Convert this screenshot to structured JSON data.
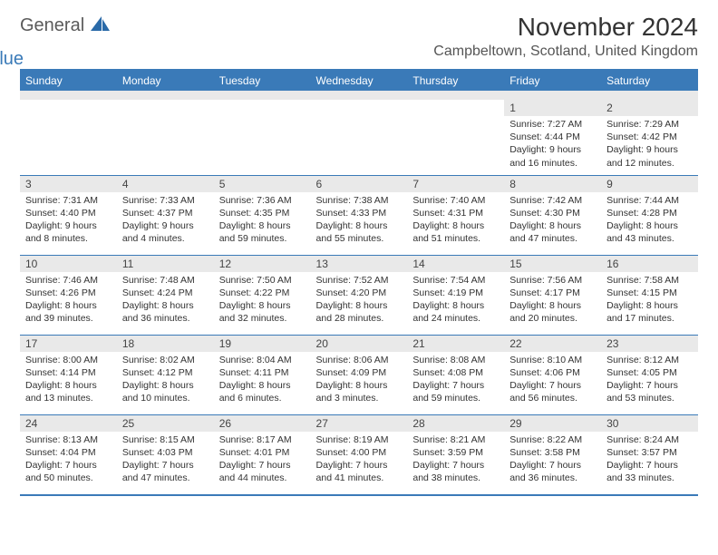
{
  "brand": {
    "text1": "General",
    "text2": "Blue",
    "icon_color": "#2a6aa8"
  },
  "header": {
    "month_title": "November 2024",
    "location": "Campbeltown, Scotland, United Kingdom"
  },
  "colors": {
    "header_bg": "#3a7ab8",
    "header_text": "#ffffff",
    "daynum_bg": "#e9e9e9",
    "rule": "#3a7ab8",
    "body_text": "#333333"
  },
  "weekdays": [
    "Sunday",
    "Monday",
    "Tuesday",
    "Wednesday",
    "Thursday",
    "Friday",
    "Saturday"
  ],
  "weeks": [
    [
      null,
      null,
      null,
      null,
      null,
      {
        "n": "1",
        "sunrise": "Sunrise: 7:27 AM",
        "sunset": "Sunset: 4:44 PM",
        "daylight": "Daylight: 9 hours and 16 minutes."
      },
      {
        "n": "2",
        "sunrise": "Sunrise: 7:29 AM",
        "sunset": "Sunset: 4:42 PM",
        "daylight": "Daylight: 9 hours and 12 minutes."
      }
    ],
    [
      {
        "n": "3",
        "sunrise": "Sunrise: 7:31 AM",
        "sunset": "Sunset: 4:40 PM",
        "daylight": "Daylight: 9 hours and 8 minutes."
      },
      {
        "n": "4",
        "sunrise": "Sunrise: 7:33 AM",
        "sunset": "Sunset: 4:37 PM",
        "daylight": "Daylight: 9 hours and 4 minutes."
      },
      {
        "n": "5",
        "sunrise": "Sunrise: 7:36 AM",
        "sunset": "Sunset: 4:35 PM",
        "daylight": "Daylight: 8 hours and 59 minutes."
      },
      {
        "n": "6",
        "sunrise": "Sunrise: 7:38 AM",
        "sunset": "Sunset: 4:33 PM",
        "daylight": "Daylight: 8 hours and 55 minutes."
      },
      {
        "n": "7",
        "sunrise": "Sunrise: 7:40 AM",
        "sunset": "Sunset: 4:31 PM",
        "daylight": "Daylight: 8 hours and 51 minutes."
      },
      {
        "n": "8",
        "sunrise": "Sunrise: 7:42 AM",
        "sunset": "Sunset: 4:30 PM",
        "daylight": "Daylight: 8 hours and 47 minutes."
      },
      {
        "n": "9",
        "sunrise": "Sunrise: 7:44 AM",
        "sunset": "Sunset: 4:28 PM",
        "daylight": "Daylight: 8 hours and 43 minutes."
      }
    ],
    [
      {
        "n": "10",
        "sunrise": "Sunrise: 7:46 AM",
        "sunset": "Sunset: 4:26 PM",
        "daylight": "Daylight: 8 hours and 39 minutes."
      },
      {
        "n": "11",
        "sunrise": "Sunrise: 7:48 AM",
        "sunset": "Sunset: 4:24 PM",
        "daylight": "Daylight: 8 hours and 36 minutes."
      },
      {
        "n": "12",
        "sunrise": "Sunrise: 7:50 AM",
        "sunset": "Sunset: 4:22 PM",
        "daylight": "Daylight: 8 hours and 32 minutes."
      },
      {
        "n": "13",
        "sunrise": "Sunrise: 7:52 AM",
        "sunset": "Sunset: 4:20 PM",
        "daylight": "Daylight: 8 hours and 28 minutes."
      },
      {
        "n": "14",
        "sunrise": "Sunrise: 7:54 AM",
        "sunset": "Sunset: 4:19 PM",
        "daylight": "Daylight: 8 hours and 24 minutes."
      },
      {
        "n": "15",
        "sunrise": "Sunrise: 7:56 AM",
        "sunset": "Sunset: 4:17 PM",
        "daylight": "Daylight: 8 hours and 20 minutes."
      },
      {
        "n": "16",
        "sunrise": "Sunrise: 7:58 AM",
        "sunset": "Sunset: 4:15 PM",
        "daylight": "Daylight: 8 hours and 17 minutes."
      }
    ],
    [
      {
        "n": "17",
        "sunrise": "Sunrise: 8:00 AM",
        "sunset": "Sunset: 4:14 PM",
        "daylight": "Daylight: 8 hours and 13 minutes."
      },
      {
        "n": "18",
        "sunrise": "Sunrise: 8:02 AM",
        "sunset": "Sunset: 4:12 PM",
        "daylight": "Daylight: 8 hours and 10 minutes."
      },
      {
        "n": "19",
        "sunrise": "Sunrise: 8:04 AM",
        "sunset": "Sunset: 4:11 PM",
        "daylight": "Daylight: 8 hours and 6 minutes."
      },
      {
        "n": "20",
        "sunrise": "Sunrise: 8:06 AM",
        "sunset": "Sunset: 4:09 PM",
        "daylight": "Daylight: 8 hours and 3 minutes."
      },
      {
        "n": "21",
        "sunrise": "Sunrise: 8:08 AM",
        "sunset": "Sunset: 4:08 PM",
        "daylight": "Daylight: 7 hours and 59 minutes."
      },
      {
        "n": "22",
        "sunrise": "Sunrise: 8:10 AM",
        "sunset": "Sunset: 4:06 PM",
        "daylight": "Daylight: 7 hours and 56 minutes."
      },
      {
        "n": "23",
        "sunrise": "Sunrise: 8:12 AM",
        "sunset": "Sunset: 4:05 PM",
        "daylight": "Daylight: 7 hours and 53 minutes."
      }
    ],
    [
      {
        "n": "24",
        "sunrise": "Sunrise: 8:13 AM",
        "sunset": "Sunset: 4:04 PM",
        "daylight": "Daylight: 7 hours and 50 minutes."
      },
      {
        "n": "25",
        "sunrise": "Sunrise: 8:15 AM",
        "sunset": "Sunset: 4:03 PM",
        "daylight": "Daylight: 7 hours and 47 minutes."
      },
      {
        "n": "26",
        "sunrise": "Sunrise: 8:17 AM",
        "sunset": "Sunset: 4:01 PM",
        "daylight": "Daylight: 7 hours and 44 minutes."
      },
      {
        "n": "27",
        "sunrise": "Sunrise: 8:19 AM",
        "sunset": "Sunset: 4:00 PM",
        "daylight": "Daylight: 7 hours and 41 minutes."
      },
      {
        "n": "28",
        "sunrise": "Sunrise: 8:21 AM",
        "sunset": "Sunset: 3:59 PM",
        "daylight": "Daylight: 7 hours and 38 minutes."
      },
      {
        "n": "29",
        "sunrise": "Sunrise: 8:22 AM",
        "sunset": "Sunset: 3:58 PM",
        "daylight": "Daylight: 7 hours and 36 minutes."
      },
      {
        "n": "30",
        "sunrise": "Sunrise: 8:24 AM",
        "sunset": "Sunset: 3:57 PM",
        "daylight": "Daylight: 7 hours and 33 minutes."
      }
    ]
  ]
}
